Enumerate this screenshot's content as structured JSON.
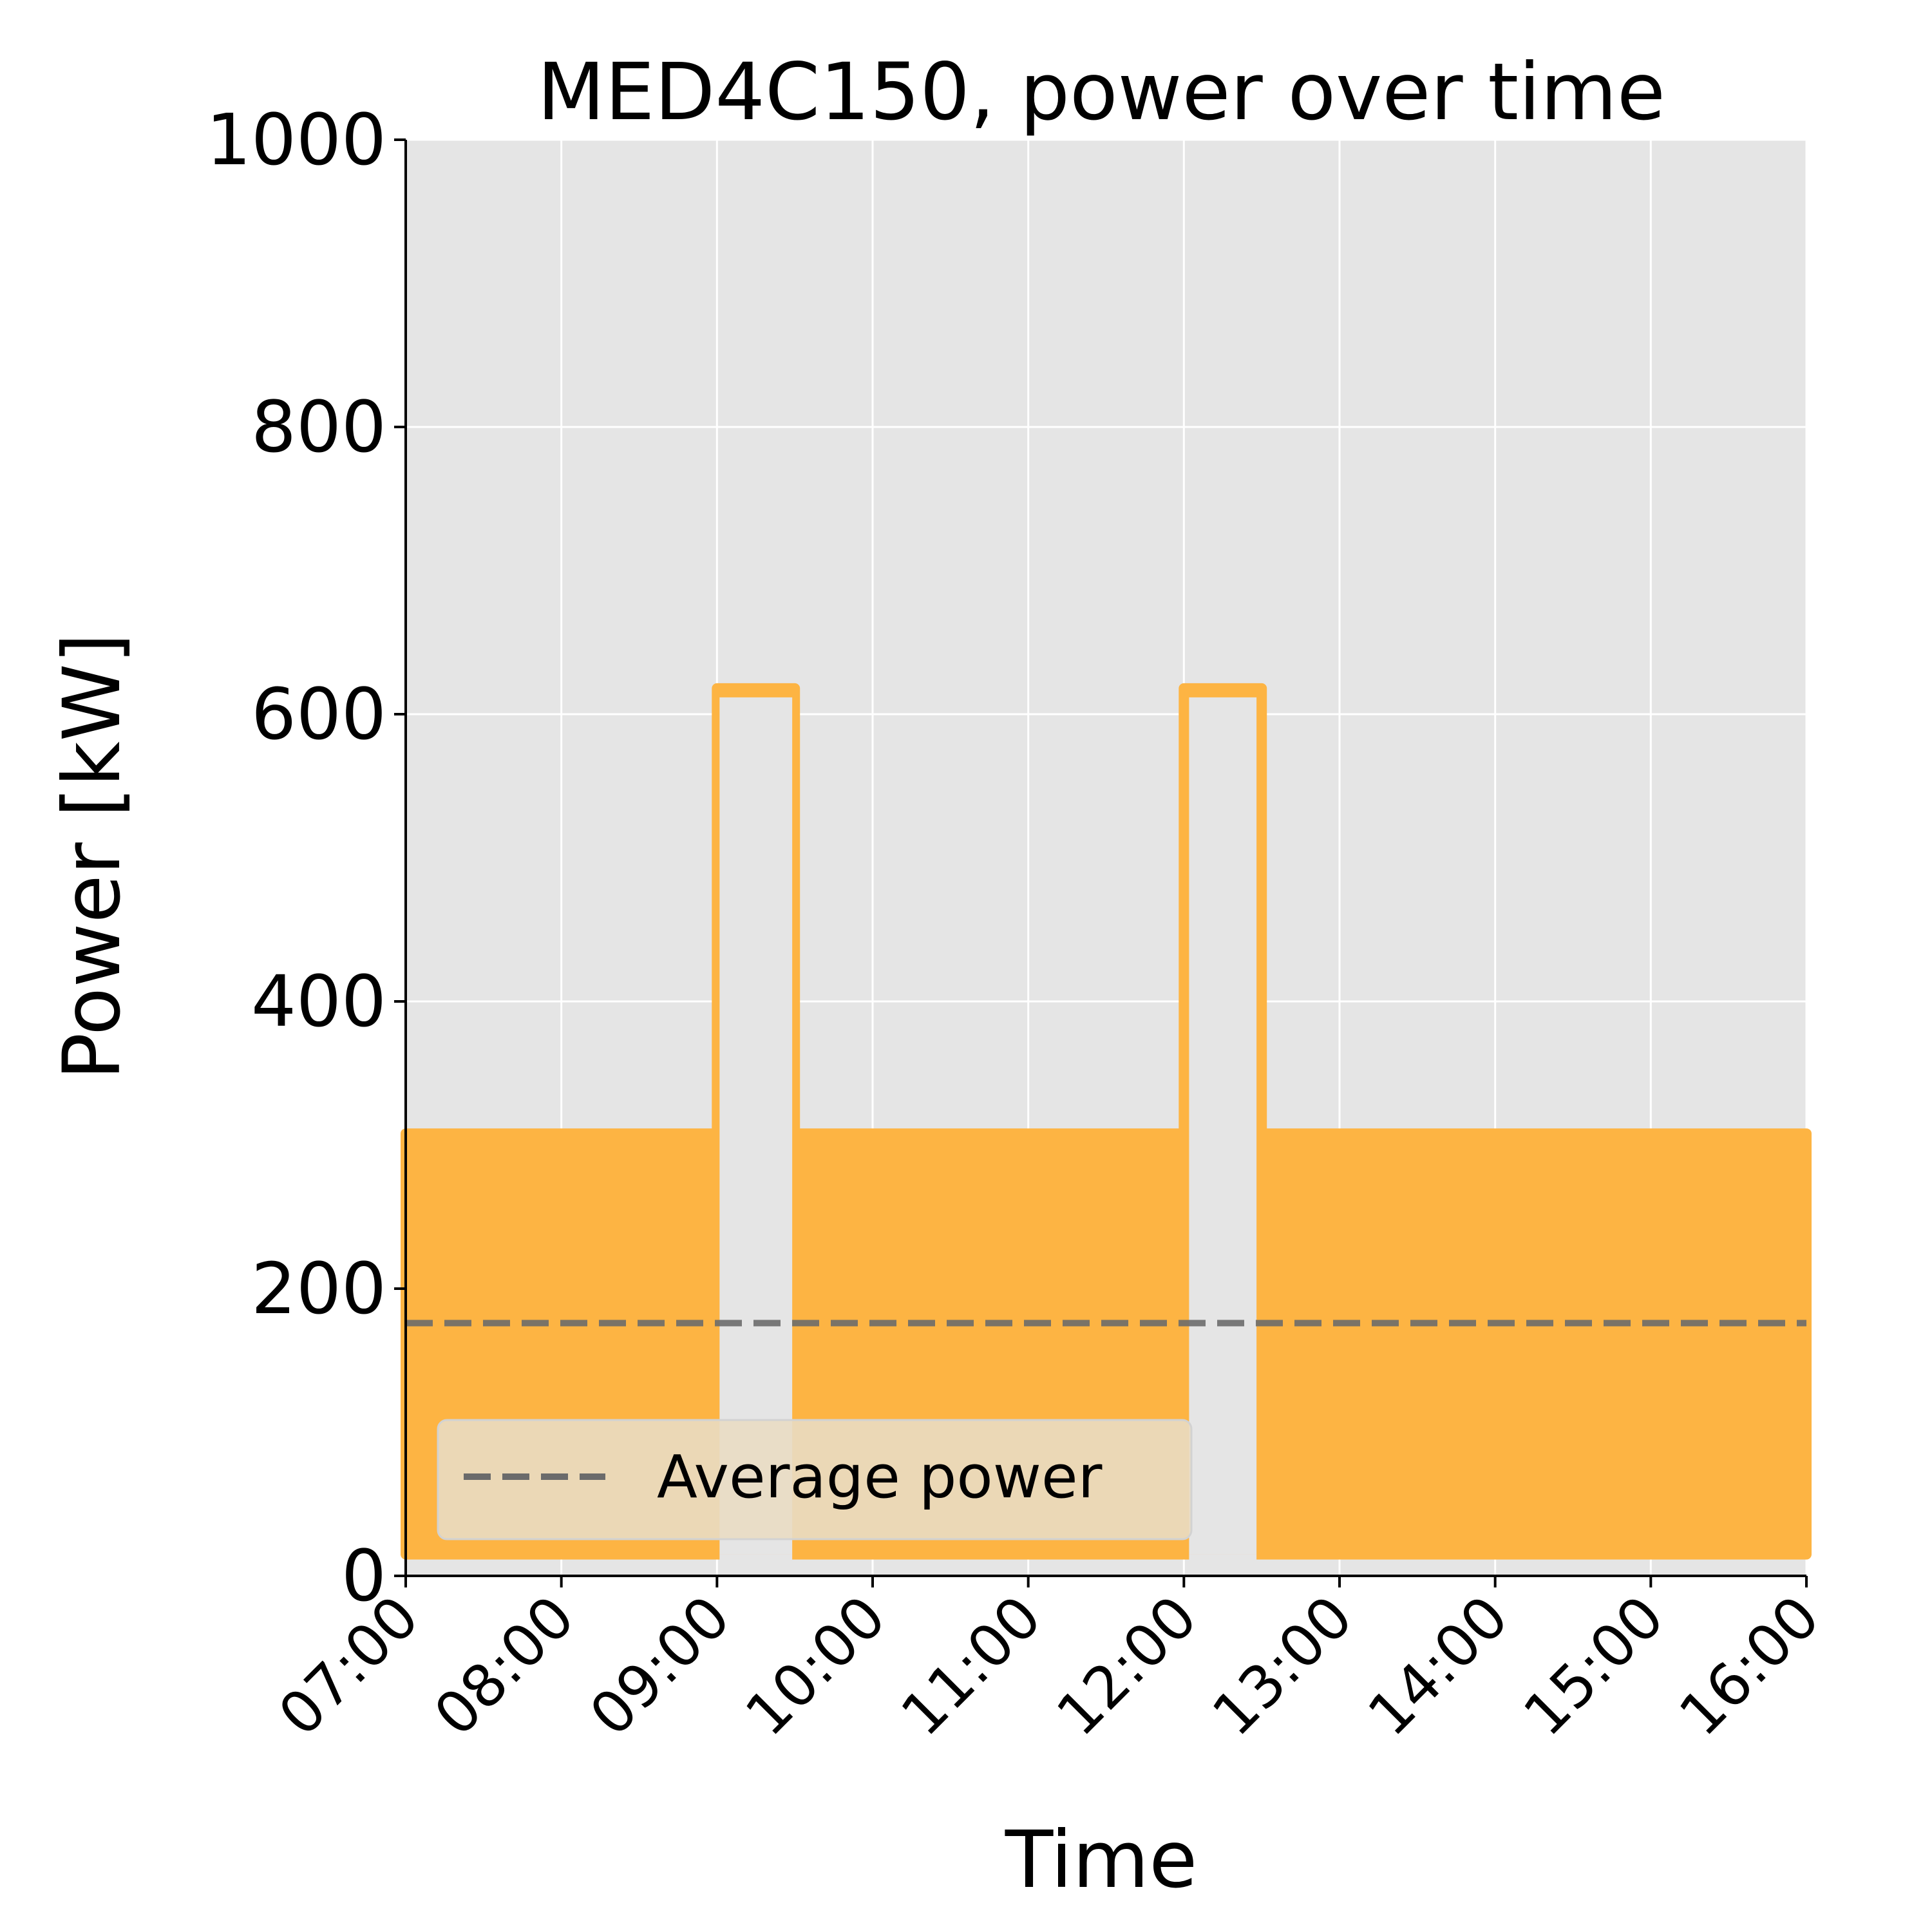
{
  "chart_data": {
    "type": "line",
    "title": "MED4C150, power over time",
    "xlabel": "Time",
    "ylabel": "Power [kW]",
    "xlim": [
      "07:00",
      "16:00"
    ],
    "ylim": [
      0,
      1000
    ],
    "xticks": [
      "07:00",
      "08:00",
      "09:00",
      "10:00",
      "11:00",
      "12:00",
      "13:00",
      "14:00",
      "15:00",
      "16:00"
    ],
    "yticks": [
      0,
      200,
      400,
      600,
      800,
      1000
    ],
    "grid": true,
    "legend_location": "lower-left",
    "series": [
      {
        "kind": "power-band",
        "color": "#FDB443",
        "points": [
          {
            "t": "07:00",
            "low": 15,
            "high": 308
          },
          {
            "t": "09:00",
            "low": 15,
            "high": 308
          },
          {
            "t": "09:00",
            "low": 15,
            "high": 618
          },
          {
            "t": "09:30",
            "low": 15,
            "high": 618
          },
          {
            "t": "09:30",
            "low": 15,
            "high": 308
          },
          {
            "t": "12:00",
            "low": 15,
            "high": 308
          },
          {
            "t": "12:00",
            "low": 15,
            "high": 618
          },
          {
            "t": "12:30",
            "low": 15,
            "high": 618
          },
          {
            "t": "12:30",
            "low": 15,
            "high": 308
          },
          {
            "t": "16:00",
            "low": 15,
            "high": 308
          }
        ],
        "gaps": [
          {
            "start": "09:01",
            "end": "09:29",
            "floor": 15
          },
          {
            "start": "12:02",
            "end": "12:28",
            "floor": 15
          }
        ]
      },
      {
        "name": "Average power",
        "kind": "average",
        "color": "#6B6B6B",
        "style": "dashed",
        "value": 176
      }
    ]
  }
}
